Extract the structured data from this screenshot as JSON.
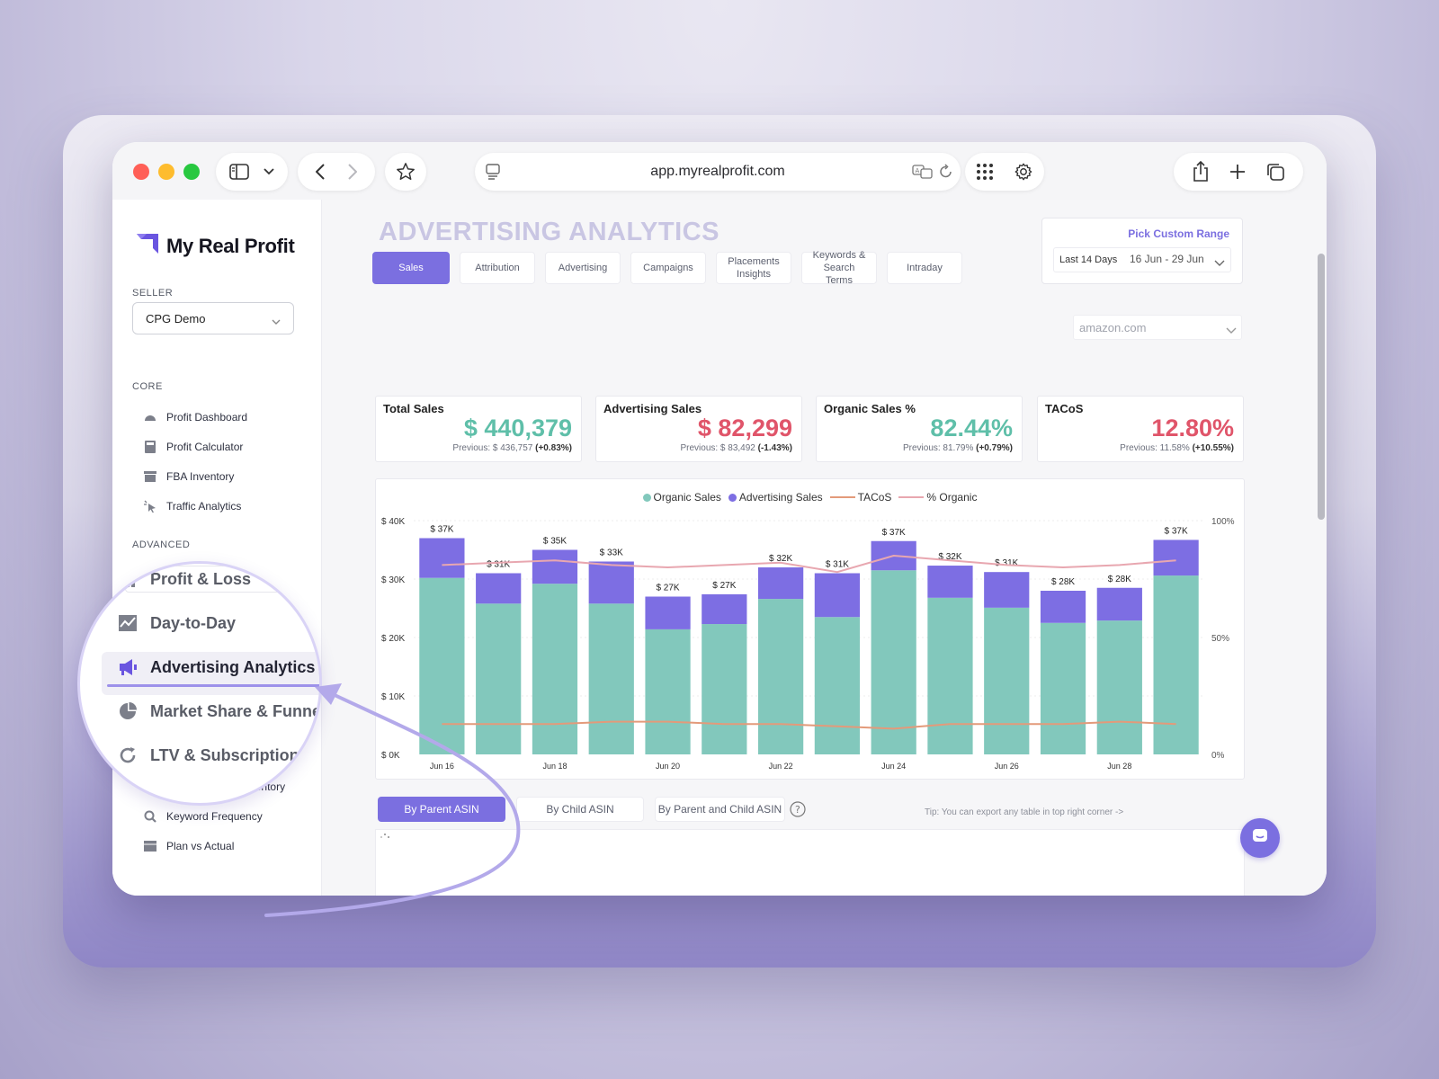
{
  "browser": {
    "url": "app.myrealprofit.com"
  },
  "app": {
    "brand": "My Real Profit",
    "seller_label": "SELLER",
    "seller_value": "CPG Demo",
    "core_label": "CORE",
    "advanced_label": "ADVANCED",
    "core_items": [
      "Profit Dashboard",
      "Profit Calculator",
      "FBA Inventory",
      "Traffic Analytics"
    ],
    "advanced_items_lower": [
      "Advanced FBA Inventory",
      "Keyword Frequency",
      "Plan vs Actual"
    ],
    "magnified_items": [
      "Profit & Loss",
      "Day-to-Day",
      "Advertising Analytics",
      "Market Share & Funnel",
      "LTV & Subscription"
    ]
  },
  "page": {
    "title": "ADVERTISING ANALYTICS",
    "tabs": [
      "Sales",
      "Attribution",
      "Advertising",
      "Campaigns",
      "Placements Insights",
      "Keywords & Search Terms",
      "Intraday"
    ],
    "range_title": "Pick Custom Range",
    "range_preset": "Last 14 Days",
    "range_dates": "16 Jun - 29 Jun",
    "marketplace": "amazon.com"
  },
  "kpis": [
    {
      "title": "Total Sales",
      "value": "$ 440,379",
      "prev": "Previous: $ 436,757",
      "change": "(+0.83%)",
      "color": "#5fbfa9"
    },
    {
      "title": "Advertising Sales",
      "value": "$ 82,299",
      "prev": "Previous: $ 83,492",
      "change": "(-1.43%)",
      "color": "#e0556a"
    },
    {
      "title": "Organic Sales %",
      "value": "82.44%",
      "prev": "Previous: 81.79%",
      "change": "(+0.79%)",
      "color": "#5fbfa9"
    },
    {
      "title": "TACoS",
      "value": "12.80%",
      "prev": "Previous: 11.58%",
      "change": "(+10.55%)",
      "color": "#e0556a"
    }
  ],
  "bottom": {
    "tabs": [
      "By Parent ASIN",
      "By Child ASIN",
      "By Parent and Child ASIN"
    ],
    "tip": "Tip:  You can export any table in top right corner ->"
  },
  "colors": {
    "accent": "#7b6fe0",
    "organic": "#82c8bc",
    "advertising": "#7d6ee3",
    "tacos": "#e39a7a",
    "pct_organic": "#e8a7b0"
  },
  "chart_data": {
    "type": "bar",
    "title": "",
    "legend": [
      "Organic Sales",
      "Advertising Sales",
      "TACoS",
      "% Organic"
    ],
    "legend_position": "top",
    "categories": [
      "Jun 16",
      "Jun 17",
      "Jun 18",
      "Jun 19",
      "Jun 20",
      "Jun 21",
      "Jun 22",
      "Jun 23",
      "Jun 24",
      "Jun 25",
      "Jun 26",
      "Jun 27",
      "Jun 28",
      "Jun 29"
    ],
    "x_tick_labels": [
      "Jun 16",
      "",
      "Jun 18",
      "",
      "Jun 20",
      "",
      "Jun 22",
      "",
      "Jun 24",
      "",
      "Jun 26",
      "",
      "Jun 28",
      ""
    ],
    "totals_labels": [
      "$ 37K",
      "$ 31K",
      "$ 35K",
      "$ 33K",
      "$ 27K",
      "$ 27K",
      "$ 32K",
      "$ 31K",
      "$ 37K",
      "$ 32K",
      "$ 31K",
      "$ 28K",
      "$ 28K",
      "$ 37K"
    ],
    "series": [
      {
        "name": "Organic Sales",
        "type": "bar",
        "stack": "sales",
        "values": [
          30200,
          25800,
          29200,
          25800,
          21400,
          22300,
          26600,
          23500,
          31500,
          26800,
          25100,
          22500,
          22900,
          30600
        ]
      },
      {
        "name": "Advertising Sales",
        "type": "bar",
        "stack": "sales",
        "values": [
          6800,
          5200,
          5800,
          7200,
          5600,
          5100,
          5400,
          7500,
          5000,
          5500,
          6100,
          5500,
          5600,
          6100
        ]
      },
      {
        "name": "TACoS",
        "type": "line",
        "axis": "right",
        "values": [
          13,
          13,
          13,
          14,
          14,
          13,
          13,
          12,
          11,
          13,
          13,
          13,
          14,
          13
        ]
      },
      {
        "name": "% Organic",
        "type": "line",
        "axis": "right",
        "values": [
          81,
          82,
          83,
          81,
          80,
          81,
          82,
          78,
          85,
          83,
          81,
          80,
          81,
          83
        ]
      }
    ],
    "y_left": {
      "ticks": [
        "$ 0K",
        "$ 10K",
        "$ 20K",
        "$ 30K",
        "$ 40K"
      ],
      "ylim": [
        0,
        40000
      ]
    },
    "y_right": {
      "ticks": [
        "0%",
        "50%",
        "100%"
      ],
      "ylim": [
        0,
        100
      ]
    },
    "grid": true
  }
}
